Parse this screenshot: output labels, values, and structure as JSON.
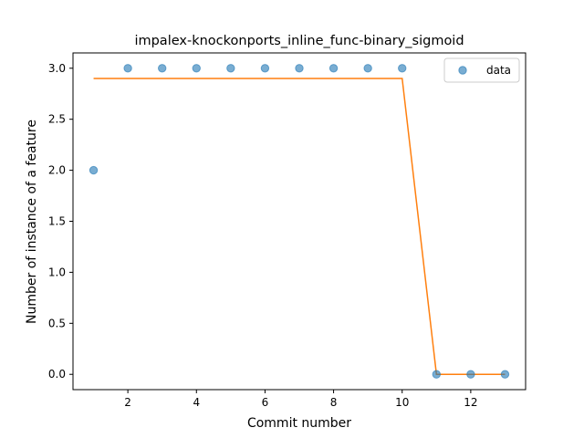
{
  "chart_data": {
    "type": "scatter",
    "title": "impalex-knockonports_inline_func-binary_sigmoid",
    "xlabel": "Commit number",
    "ylabel": "Number of instance of a feature",
    "xlim": [
      0.4,
      13.6
    ],
    "ylim": [
      -0.15,
      3.15
    ],
    "xticks": [
      2,
      4,
      6,
      8,
      10,
      12
    ],
    "yticks": [
      0.0,
      0.5,
      1.0,
      1.5,
      2.0,
      2.5,
      3.0
    ],
    "ytick_labels": [
      "0.0",
      "0.5",
      "1.0",
      "1.5",
      "2.0",
      "2.5",
      "3.0"
    ],
    "grid": false,
    "legend_position": "top-right",
    "series": [
      {
        "name": "data",
        "kind": "scatter",
        "color": "#1f77b4",
        "x": [
          1,
          2,
          3,
          4,
          5,
          6,
          7,
          8,
          9,
          10,
          11,
          12,
          13
        ],
        "y": [
          2,
          3,
          3,
          3,
          3,
          3,
          3,
          3,
          3,
          3,
          0,
          0,
          0
        ]
      },
      {
        "kind": "line",
        "color": "#ff7f0e",
        "x": [
          1,
          2,
          3,
          4,
          5,
          6,
          7,
          8,
          9,
          10,
          11,
          12,
          13
        ],
        "y": [
          2.9,
          2.9,
          2.9,
          2.9,
          2.9,
          2.9,
          2.9,
          2.9,
          2.9,
          2.9,
          0.0,
          0.0,
          0.0
        ]
      }
    ]
  }
}
